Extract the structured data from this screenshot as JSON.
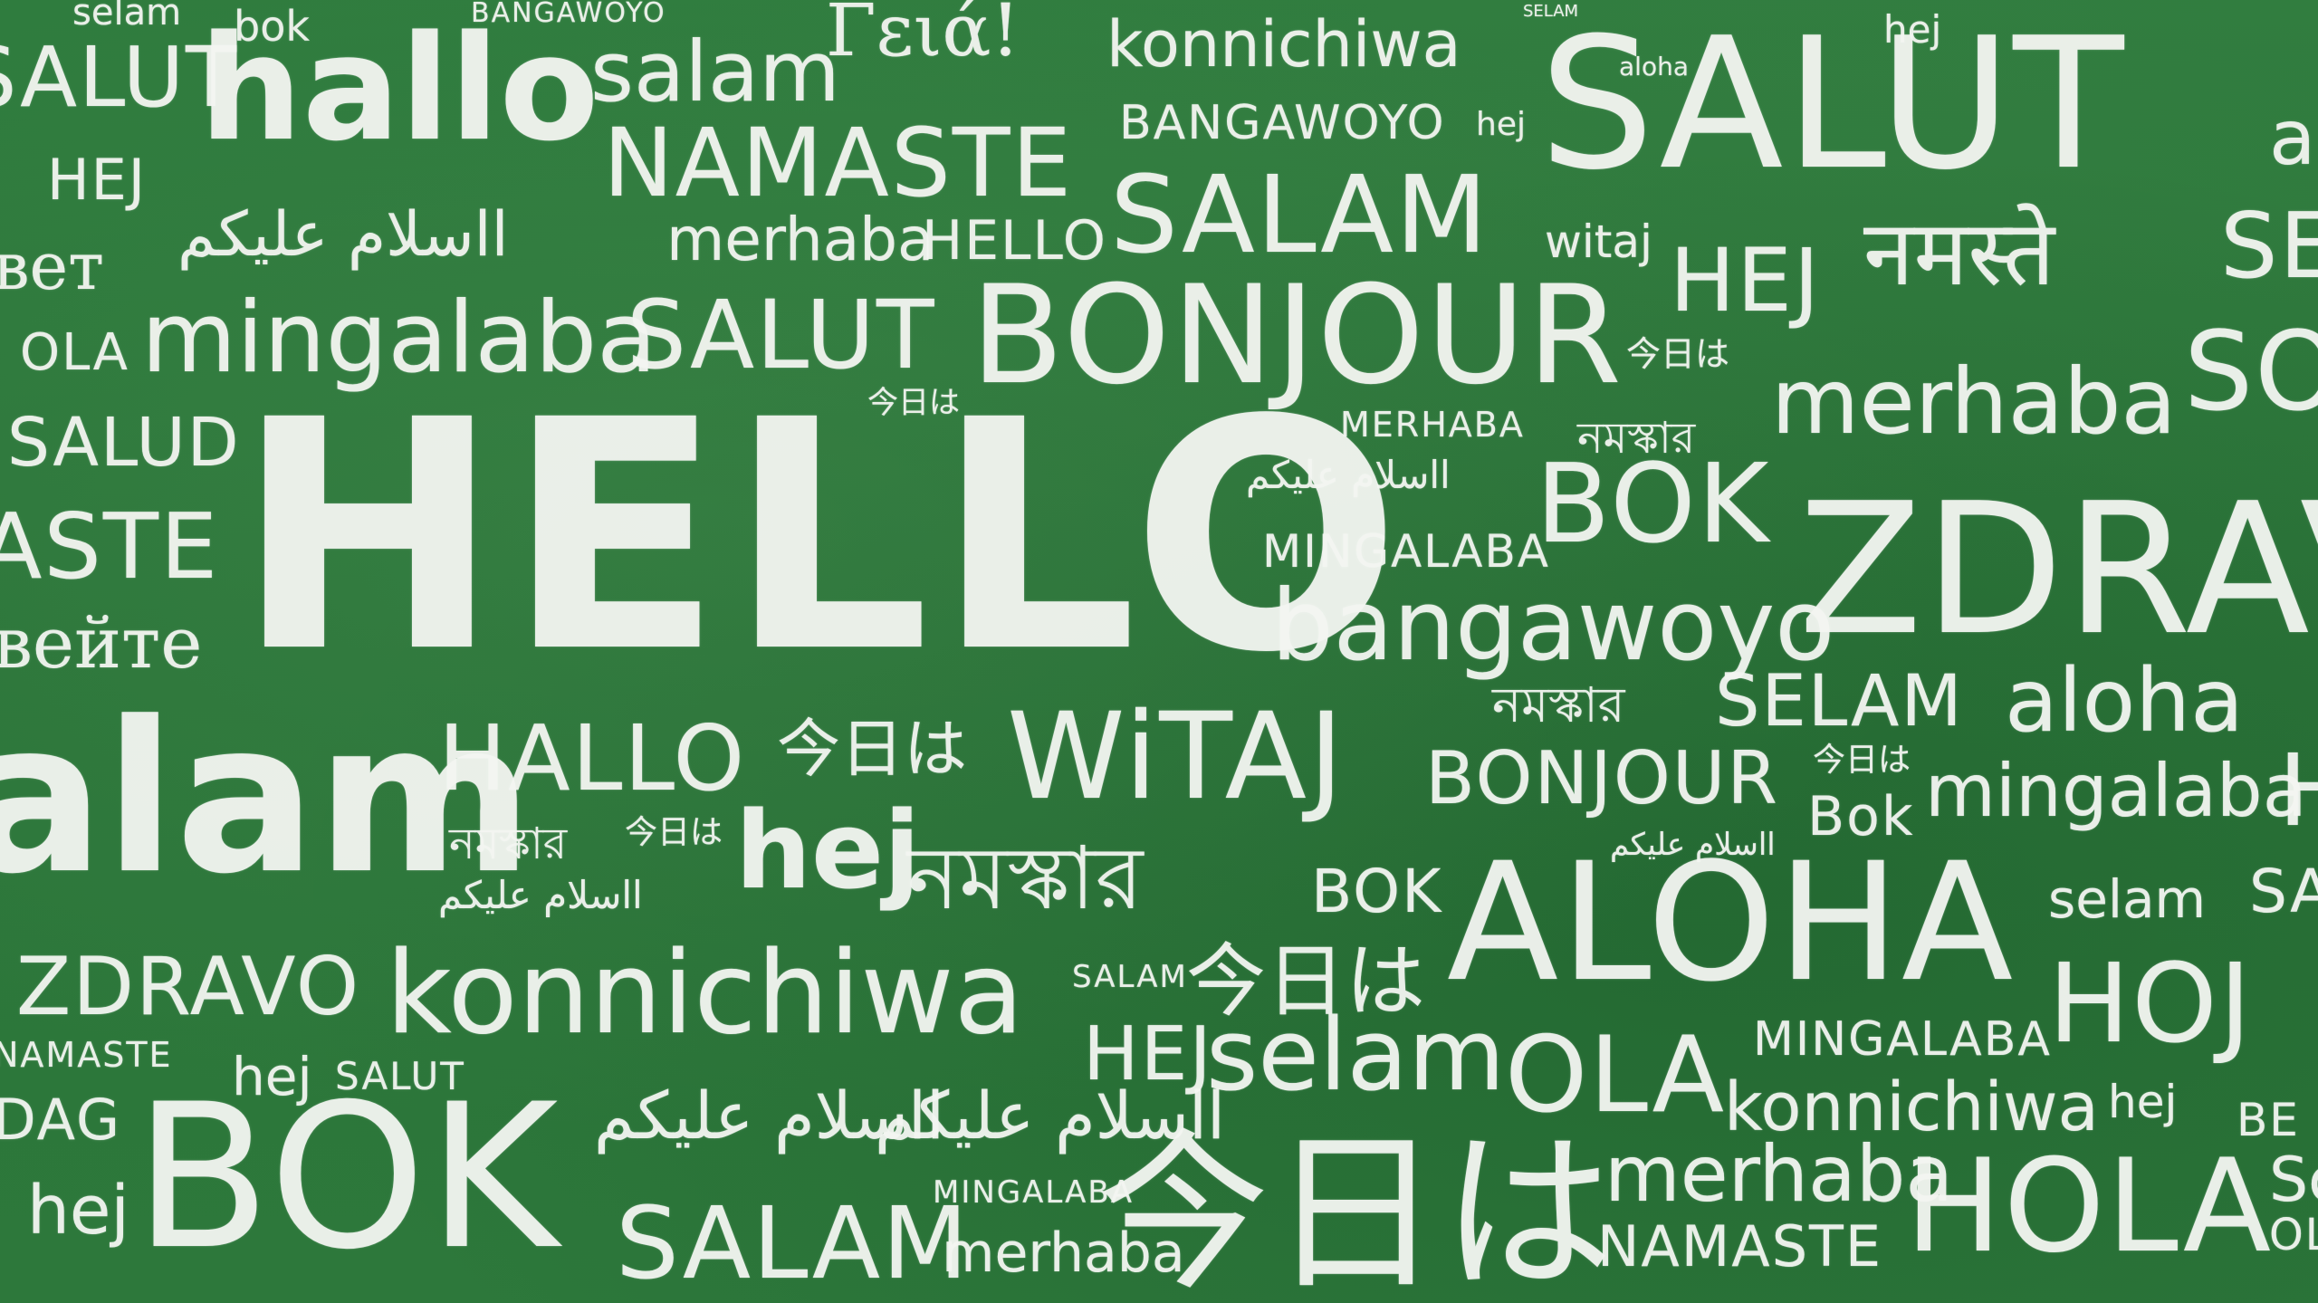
{
  "background_color": "#2e7a3c",
  "chalk_color": "#f4f6f2",
  "words": [
    "selam",
    "bok",
    "BANGAWOYO",
    "Γειά!",
    "konnichiwa",
    "SELAM",
    "hej",
    "SALUT",
    "aloha",
    "SALUT",
    "hallo",
    "salam",
    "NAMASTE",
    "BANGAWOYO",
    "hej",
    "al",
    "HEJ",
    "вет",
    "ااسلام عليكم",
    "merhaba",
    "HELLO",
    "SALAM",
    "witaj",
    "HEJ",
    "नमस्ते",
    "SE",
    "OLA",
    "mingalaba",
    "SALUT",
    "BONJOUR",
    "今日は",
    "SO",
    "SALUD",
    "今日は",
    "MERHABA",
    "merhaba",
    "নমস্কার",
    "ASTE",
    "HELLO",
    "ااسلام عليكم",
    "MINGALABA",
    "BOK",
    "ZDRAV",
    "вейте",
    "bangawoyo",
    "alam",
    "HALLO",
    "今日は",
    "WiTAJ",
    "নমস্কার",
    "SELAM",
    "aloha",
    "BONJOUR",
    "今日は",
    "Bok",
    "mingalaba",
    "H",
    "নমস্কার",
    "今日は",
    "hej",
    "নমস্কার",
    "ااسلام عليكم",
    "BOK",
    "ااسلام عليكم",
    "ALOHA",
    "selam",
    "SAL",
    "ZDRAVO",
    "konnichiwa",
    "SALAM",
    "今日は",
    "HOJ",
    "NAMASTE",
    "hej",
    "SALUT",
    "HEJ",
    "selam",
    "OLA",
    "MINGALABA",
    "konnichiwa",
    "hej",
    "DAG",
    "ااسلام عليكم",
    "ااسلام عليكم",
    "hej",
    "BOK",
    "MINGALABA",
    "SALAM",
    "merhaba",
    "今日は",
    "merhaba",
    "HOLA",
    "Sc",
    "NAMASTE",
    "OL",
    "BE"
  ]
}
